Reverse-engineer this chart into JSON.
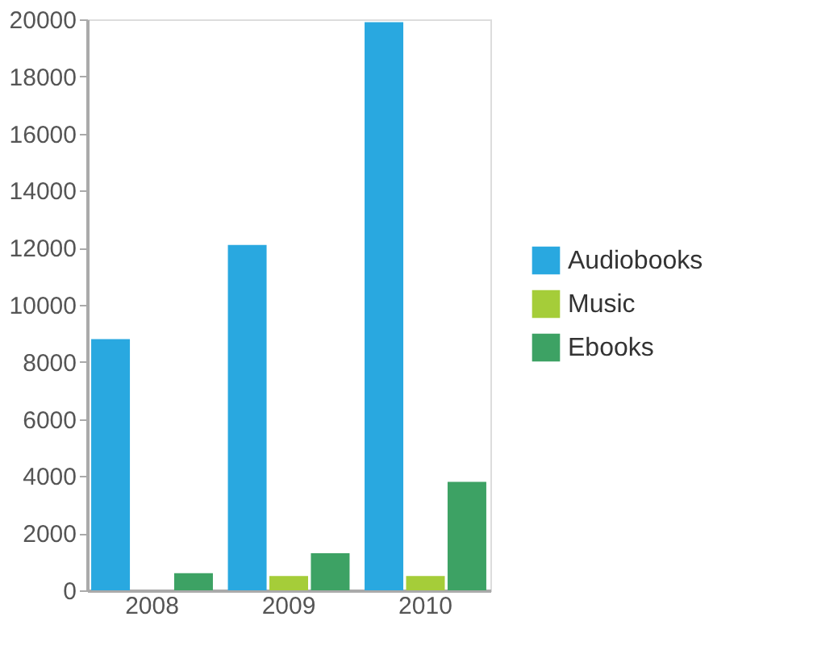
{
  "chart_data": {
    "type": "bar",
    "categories": [
      "2008",
      "2009",
      "2010"
    ],
    "series": [
      {
        "name": "Audiobooks",
        "color": "#29a8e0",
        "values": [
          8800,
          12100,
          19900
        ]
      },
      {
        "name": "Music",
        "color": "#a5cd39",
        "values": [
          0,
          500,
          500
        ]
      },
      {
        "name": "Ebooks",
        "color": "#3da264",
        "values": [
          600,
          1300,
          3800
        ]
      }
    ],
    "ylim": [
      0,
      20000
    ],
    "yticks": [
      0,
      2000,
      4000,
      6000,
      8000,
      10000,
      12000,
      14000,
      16000,
      18000,
      20000
    ],
    "grid": false,
    "legend": "right"
  }
}
